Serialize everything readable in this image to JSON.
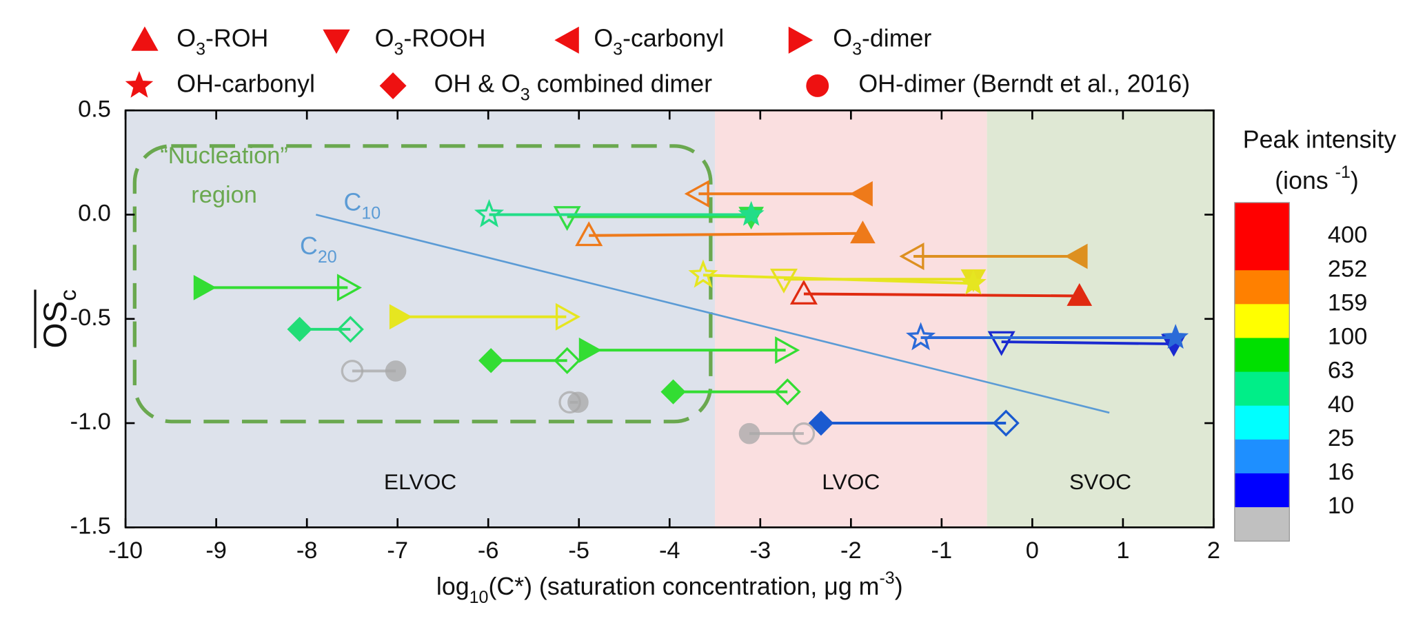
{
  "chart_data": {
    "type": "scatter",
    "xlabel": [
      {
        "text": "log"
      },
      {
        "sub": "10"
      },
      {
        "text": "(C*) (saturation concentration, μg m"
      },
      {
        "sup": "-3"
      },
      {
        "text": ")"
      }
    ],
    "ylabel": [
      {
        "text": "OS"
      },
      {
        "sub": "c"
      }
    ],
    "ylabel_overline": true,
    "xlim": [
      -10,
      2
    ],
    "xticks": [
      -10,
      -9,
      -8,
      -7,
      -6,
      -5,
      -4,
      -3,
      -2,
      -1,
      0,
      1,
      2
    ],
    "ylim": [
      -1.5,
      0.5
    ],
    "yticks": [
      -1.5,
      {
        "value": -1,
        "label": "-1.0"
      },
      -0.5,
      {
        "value": 0,
        "label": "0.0"
      },
      0.5
    ],
    "regions": [
      {
        "label": "ELVOC",
        "from": -10,
        "to": -3.5,
        "color": "#dde2eb"
      },
      {
        "label": "LVOC",
        "from": -3.5,
        "to": -0.5,
        "color": "#fadfe0"
      },
      {
        "label": "SVOC",
        "from": -0.5,
        "to": 2,
        "color": "#dfe8d4"
      }
    ],
    "annotation": [
      "“Nucleation”",
      "region"
    ],
    "annotation_color": "#6aa84f",
    "reference_line": {
      "x": [
        -7.9,
        0.85
      ],
      "y": [
        0,
        -0.95
      ],
      "color": "#5b9bd5",
      "labels": [
        [
          {
            "text": "C"
          },
          {
            "sub": "10"
          }
        ],
        [
          {
            "text": "C"
          },
          {
            "sub": "20"
          }
        ]
      ]
    },
    "legend_color": "#ee1111",
    "series": [
      {
        "name": "O3-ROH",
        "marker": "triangle-up",
        "points": [
          {
            "x_filled": -1.87,
            "y_filled": -0.09,
            "x_open": -4.89,
            "y_open": -0.1,
            "color": "#ee7a1a"
          },
          {
            "x_filled": 0.52,
            "y_filled": -0.39,
            "x_open": -2.52,
            "y_open": -0.38,
            "color": "#e02a10"
          }
        ]
      },
      {
        "name": "O3-ROOH",
        "marker": "triangle-down",
        "points": [
          {
            "x_filled": -3.1,
            "y_filled": -0.01,
            "x_open": -5.13,
            "y_open": -0.01,
            "color": "#33dd44"
          },
          {
            "x_filled": -0.65,
            "y_filled": -0.31,
            "x_open": -2.74,
            "y_open": -0.31,
            "color": "#e6e020"
          },
          {
            "x_filled": 1.56,
            "y_filled": -0.62,
            "x_open": -0.34,
            "y_open": -0.61,
            "color": "#1a2ad0"
          }
        ]
      },
      {
        "name": "O3-carbonyl",
        "marker": "triangle-left",
        "points": [
          {
            "x_filled": -1.87,
            "y_filled": 0.1,
            "x_open": -3.68,
            "y_open": 0.1,
            "color": "#ee7a1a"
          },
          {
            "x_filled": 0.5,
            "y_filled": -0.2,
            "x_open": -1.31,
            "y_open": -0.2,
            "color": "#dd9020"
          }
        ]
      },
      {
        "name": "O3-dimer",
        "marker": "triangle-right",
        "points": [
          {
            "x_filled": -9.14,
            "y_filled": -0.35,
            "x_open": -7.55,
            "y_open": -0.35,
            "color": "#33dd33"
          },
          {
            "x_filled": -6.98,
            "y_filled": -0.49,
            "x_open": -5.14,
            "y_open": -0.49,
            "color": "#e6e620"
          },
          {
            "x_filled": -4.89,
            "y_filled": -0.65,
            "x_open": -2.72,
            "y_open": -0.65,
            "color": "#33dd33"
          }
        ]
      },
      {
        "name": "OH-carbonyl",
        "marker": "star",
        "points": [
          {
            "x_filled": -3.1,
            "y_filled": 0,
            "x_open": -5.99,
            "y_open": 0,
            "color": "#22dd88"
          },
          {
            "x_filled": -0.65,
            "y_filled": -0.33,
            "x_open": -3.63,
            "y_open": -0.29,
            "color": "#e6e620"
          },
          {
            "x_filled": 1.58,
            "y_filled": -0.59,
            "x_open": -1.23,
            "y_open": -0.59,
            "color": "#2a6ad8"
          }
        ]
      },
      {
        "name": "OH & O3 combined dimer",
        "marker": "diamond",
        "points": [
          {
            "x_filled": -8.08,
            "y_filled": -0.55,
            "x_open": -7.52,
            "y_open": -0.55,
            "color": "#22dd77"
          },
          {
            "x_filled": -5.97,
            "y_filled": -0.7,
            "x_open": -5.13,
            "y_open": -0.7,
            "color": "#33dd33"
          },
          {
            "x_filled": -3.96,
            "y_filled": -0.85,
            "x_open": -2.7,
            "y_open": -0.85,
            "color": "#33dd33"
          },
          {
            "x_filled": -2.33,
            "y_filled": -1,
            "x_open": -0.29,
            "y_open": -1,
            "color": "#1a5ad0"
          }
        ]
      },
      {
        "name": "OH-dimer (Berndt et al., 2016)",
        "marker": "circle",
        "points": [
          {
            "x_filled": -7.02,
            "y_filled": -0.75,
            "x_open": -7.5,
            "y_open": -0.75,
            "color": "#a8a8a8"
          },
          {
            "x_filled": -5.01,
            "y_filled": -0.9,
            "x_open": -5.1,
            "y_open": -0.9,
            "color": "#a8a8a8"
          },
          {
            "x_filled": -3.12,
            "y_filled": -1.05,
            "x_open": -2.52,
            "y_open": -1.05,
            "color": "#a8a8a8"
          }
        ]
      }
    ],
    "colorbar": {
      "title": "Peak intensity",
      "unit": [
        {
          "text": "(ions "
        },
        {
          "sup": "-1"
        },
        {
          "text": ")"
        }
      ],
      "colors": [
        "#ff0000",
        "#ff0000",
        "#ff8000",
        "#ffff00",
        "#00e000",
        "#00ee88",
        "#00ffff",
        "#1e8fff",
        "#0000ff",
        "#c0c0c0"
      ],
      "labels": [
        400,
        252,
        159,
        100,
        63,
        40,
        25,
        16,
        10
      ]
    }
  }
}
